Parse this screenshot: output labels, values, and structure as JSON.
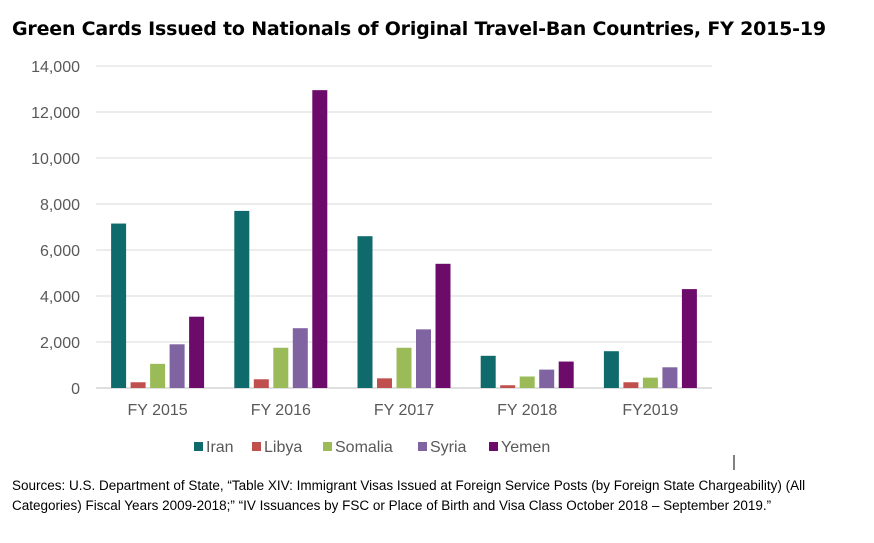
{
  "title": "Green Cards Issued to Nationals of Original Travel-Ban Countries, FY 2015-19",
  "source": "Sources: U.S. Department of State, “Table XIV: Immigrant Visas Issued at Foreign Service Posts (by Foreign State Chargeability) (All Categories) Fiscal Years 2009-2018;” “IV Issuances by FSC or Place of Birth and Visa Class October 2018 – September 2019.”",
  "chart_data": {
    "type": "bar",
    "categories": [
      "FY 2015",
      "FY 2016",
      "FY 2017",
      "FY 2018",
      "FY2019"
    ],
    "series": [
      {
        "name": "Iran",
        "color": "#0f6b6b",
        "values": [
          7150,
          7700,
          6600,
          1400,
          1600
        ]
      },
      {
        "name": "Libya",
        "color": "#c0504d",
        "values": [
          250,
          380,
          420,
          120,
          250
        ]
      },
      {
        "name": "Somalia",
        "color": "#9bbb59",
        "values": [
          1050,
          1750,
          1750,
          500,
          450
        ]
      },
      {
        "name": "Syria",
        "color": "#8064a2",
        "values": [
          1900,
          2600,
          2550,
          800,
          900
        ]
      },
      {
        "name": "Yemen",
        "color": "#6d0b6b",
        "values": [
          3100,
          12950,
          5400,
          1150,
          4300
        ]
      }
    ],
    "yticks": [
      "0",
      "2,000",
      "4,000",
      "6,000",
      "8,000",
      "10,000",
      "12,000",
      "14,000"
    ],
    "ylim": [
      0,
      14000
    ],
    "grid": true,
    "legend_position": "bottom"
  }
}
